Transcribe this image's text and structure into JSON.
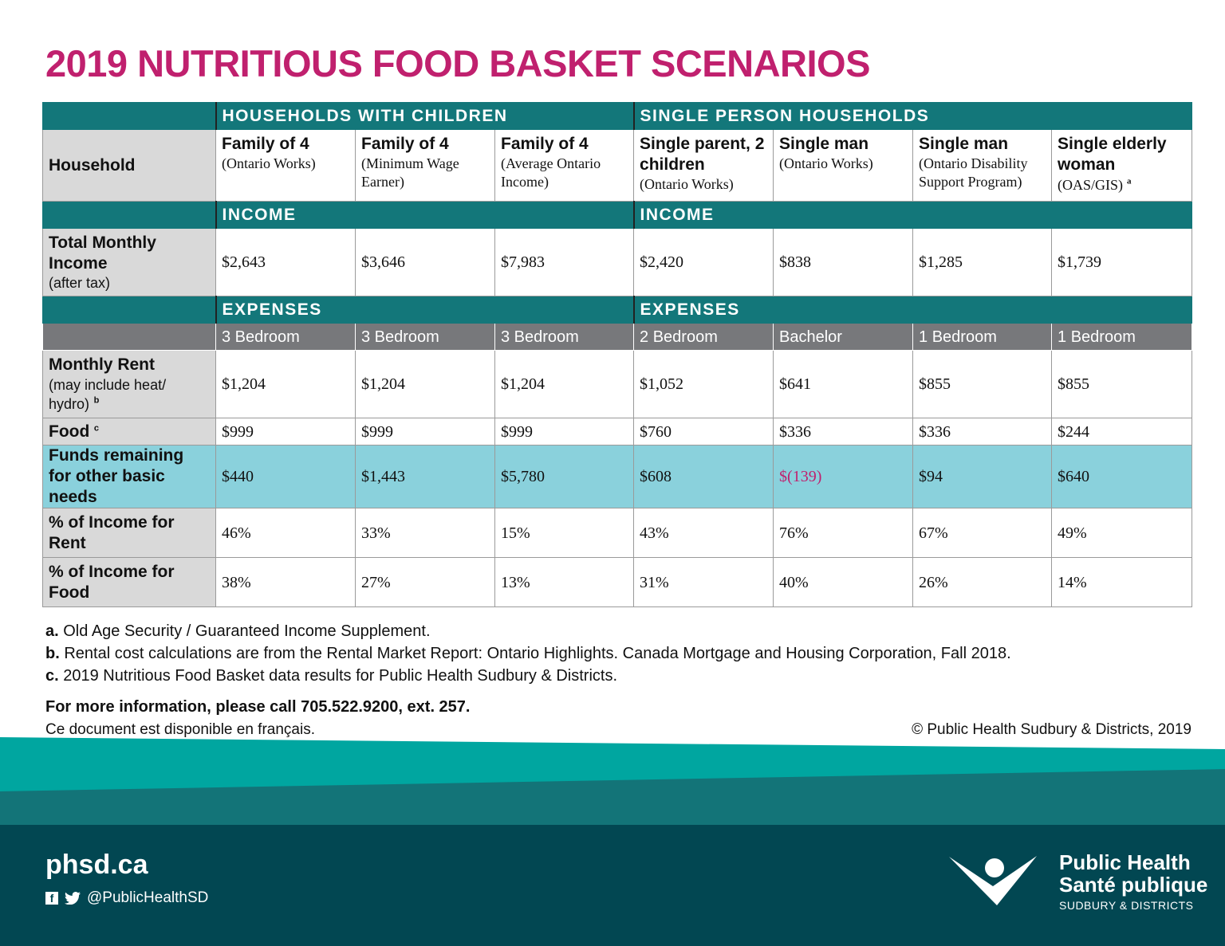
{
  "title": "2019 NUTRITIOUS FOOD BASKET SCENARIOS",
  "groups": {
    "children": "HOUSEHOLDS WITH CHILDREN",
    "single": "SINGLE PERSON HOUSEHOLDS"
  },
  "row_labels": {
    "household": "Household",
    "income_band": "INCOME",
    "income": {
      "main": "Total Monthly Income",
      "sub": "(after tax)"
    },
    "expenses_band": "EXPENSES",
    "rent": {
      "main": "Monthly Rent",
      "sub": "(may include heat/ hydro)",
      "note": "b"
    },
    "food": {
      "main": "Food",
      "note": "c"
    },
    "funds": "Funds remaining for other basic needs",
    "rent_pct": "% of Income for Rent",
    "food_pct": "% of Income for Food"
  },
  "households": [
    {
      "name": "Family of 4",
      "sub": "(Ontario Works)",
      "income": "$2,643",
      "bedroom": "3 Bedroom",
      "rent": "$1,204",
      "food": "$999",
      "funds": "$440",
      "rent_pct": "46%",
      "food_pct": "38%"
    },
    {
      "name": "Family of 4",
      "sub": "(Minimum Wage Earner)",
      "income": "$3,646",
      "bedroom": "3 Bedroom",
      "rent": "$1,204",
      "food": "$999",
      "funds": "$1,443",
      "rent_pct": "33%",
      "food_pct": "27%"
    },
    {
      "name": "Family of 4",
      "sub": "(Average Ontario Income)",
      "income": "$7,983",
      "bedroom": "3 Bedroom",
      "rent": "$1,204",
      "food": "$999",
      "funds": "$5,780",
      "rent_pct": "15%",
      "food_pct": "13%"
    },
    {
      "name": "Single parent, 2 children",
      "sub": "(Ontario Works)",
      "income": "$2,420",
      "bedroom": "2 Bedroom",
      "rent": "$1,052",
      "food": "$760",
      "funds": "$608",
      "rent_pct": "43%",
      "food_pct": "31%"
    },
    {
      "name": "Single man",
      "sub": "(Ontario Works)",
      "income": "$838",
      "bedroom": "Bachelor",
      "rent": "$641",
      "food": "$336",
      "funds": "$(139)",
      "funds_negative": true,
      "rent_pct": "76%",
      "food_pct": "40%"
    },
    {
      "name": "Single man",
      "sub": "(Ontario Disability Support Program)",
      "income": "$1,285",
      "bedroom": "1 Bedroom",
      "rent": "$855",
      "food": "$336",
      "funds": "$94",
      "rent_pct": "67%",
      "food_pct": "26%"
    },
    {
      "name": "Single elderly woman",
      "sub": "(OAS/GIS)",
      "note": "a",
      "income": "$1,739",
      "bedroom": "1 Bedroom",
      "rent": "$855",
      "food": "$244",
      "funds": "$640",
      "rent_pct": "49%",
      "food_pct": "14%"
    }
  ],
  "notes": [
    {
      "mark": "a.",
      "text": "Old Age Security / Guaranteed Income Supplement."
    },
    {
      "mark": "b.",
      "text": "Rental cost calculations are from the Rental Market Report: Ontario Highlights. Canada Mortgage and Housing Corporation, Fall 2018."
    },
    {
      "mark": "c.",
      "text": "2019 Nutritious Food Basket data results for Public Health Sudbury & Districts."
    }
  ],
  "more_info": "For more information, please call 705.522.9200, ext. 257.",
  "french": "Ce document est disponible en français.",
  "copyright": "© Public Health Sudbury & Districts, 2019",
  "footer": {
    "website": "phsd.ca",
    "handle": "@PublicHealthSD",
    "logo_lines": [
      "Public Health",
      "Santé publique",
      "SUDBURY & DISTRICTS"
    ]
  },
  "colors": {
    "title": "#c0206e",
    "teal": "#13777a",
    "highlight": "#8ad1dc",
    "label_gray": "#d9d9d9",
    "bedroom_gray": "#77787b",
    "footer_dark": "#024752"
  }
}
